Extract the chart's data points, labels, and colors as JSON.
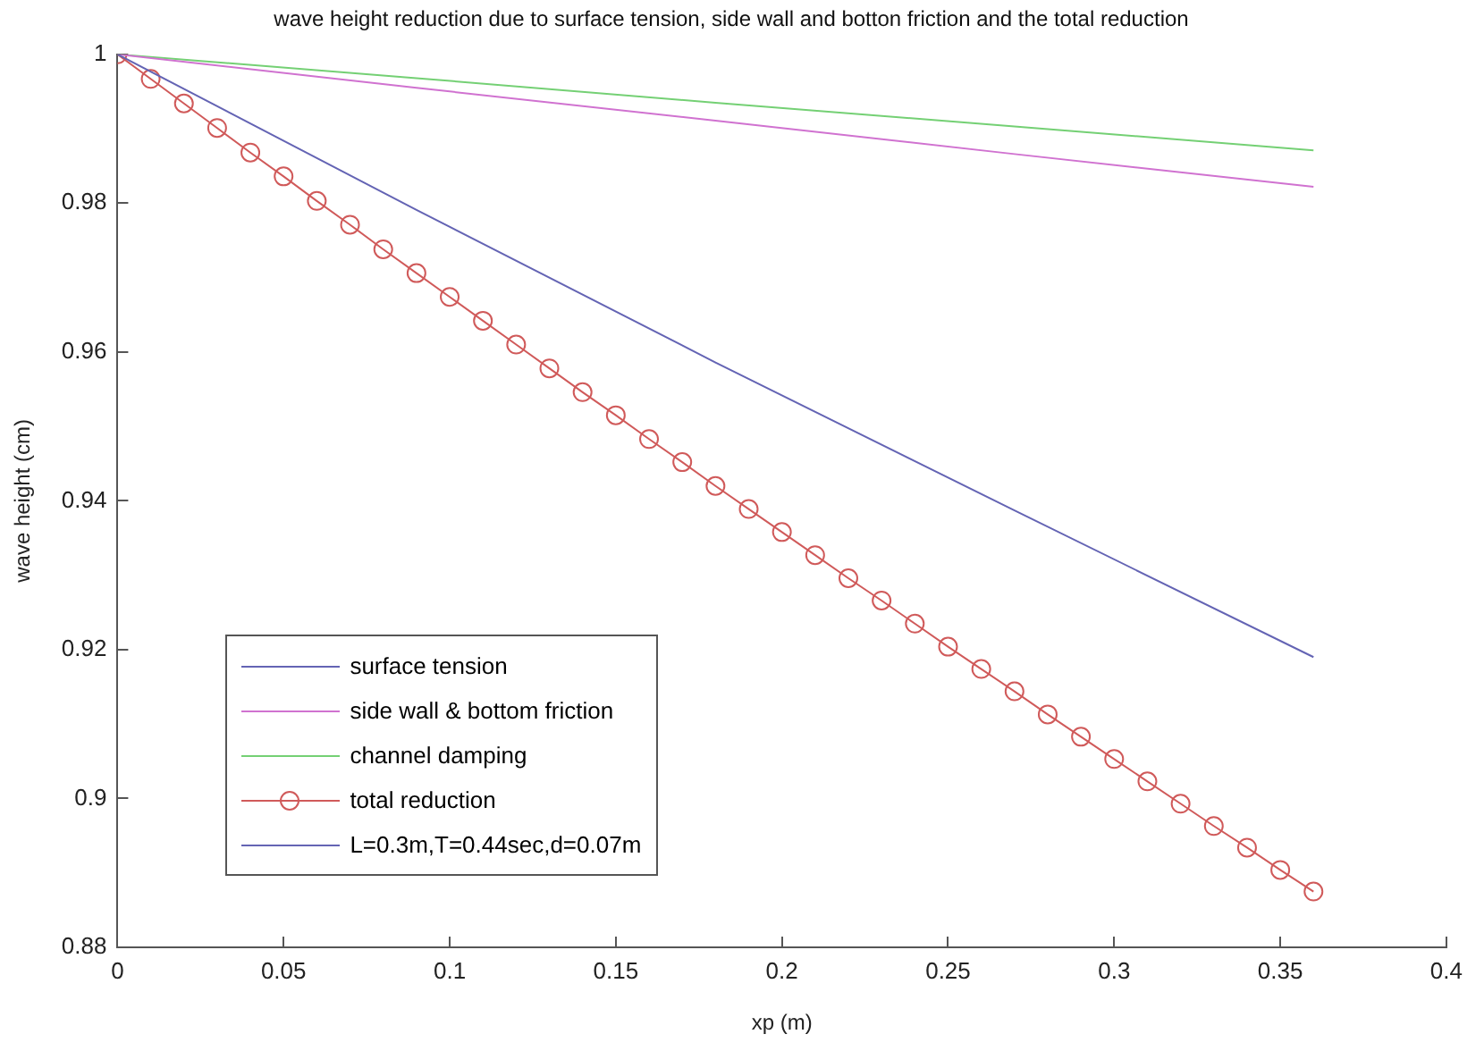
{
  "chart_data": {
    "type": "line",
    "title": "wave height reduction due to surface tension, side wall and botton friction and the total reduction",
    "xlabel": "xp (m)",
    "ylabel": "wave height (cm)",
    "xlim": [
      0,
      0.4
    ],
    "xticks": [
      0,
      0.05,
      0.1,
      0.15,
      0.2,
      0.25,
      0.3,
      0.35,
      0.4
    ],
    "ylim": [
      0.88,
      1
    ],
    "yticks": [
      0.88,
      0.9,
      0.92,
      0.94,
      0.96,
      0.98,
      1
    ],
    "grid": false,
    "legend": "bottom left",
    "marker": "none",
    "line_style": "solid",
    "series": [
      {
        "name": "surface tension",
        "color": "#6464b4",
        "x": [
          0,
          0.09,
          0.18,
          0.27,
          0.36
        ],
        "values": [
          1,
          0.9791,
          0.9586,
          0.9387,
          0.919
        ]
      },
      {
        "name": "side wall & bottom friction",
        "color": "#d072d0",
        "x": [
          0,
          0.09,
          0.18,
          0.27,
          0.36
        ],
        "values": [
          1,
          0.9955,
          0.9911,
          0.9866,
          0.9822
        ]
      },
      {
        "name": "channel damping",
        "color": "#74d074",
        "x": [
          0,
          0.09,
          0.18,
          0.27,
          0.36
        ],
        "values": [
          1,
          0.9968,
          0.9935,
          0.9903,
          0.9871
        ]
      },
      {
        "name": "total reduction",
        "color": "#d05a5a",
        "marker": "circle",
        "x": [
          0,
          0.01,
          0.02,
          0.03,
          0.04,
          0.05,
          0.06,
          0.07,
          0.08,
          0.09,
          0.1,
          0.11,
          0.12,
          0.13,
          0.14,
          0.15,
          0.16,
          0.17,
          0.18,
          0.19,
          0.2,
          0.21,
          0.22,
          0.23,
          0.24,
          0.25,
          0.26,
          0.27,
          0.28,
          0.29,
          0.3,
          0.31,
          0.32,
          0.33,
          0.34,
          0.35,
          0.36
        ],
        "values": [
          1,
          0.9967,
          0.9934,
          0.9901,
          0.9868,
          0.9836,
          0.9803,
          0.9771,
          0.9738,
          0.9706,
          0.9674,
          0.9642,
          0.961,
          0.9578,
          0.9546,
          0.9515,
          0.9483,
          0.9452,
          0.942,
          0.9389,
          0.9358,
          0.9327,
          0.9296,
          0.9266,
          0.9235,
          0.9204,
          0.9174,
          0.9144,
          0.9113,
          0.9083,
          0.9053,
          0.9023,
          0.8993,
          0.8963,
          0.8934,
          0.8904,
          0.8875
        ]
      },
      {
        "name": "L=0.3m,T=0.44sec,d=0.07m",
        "color": "#6464b4"
      }
    ]
  }
}
